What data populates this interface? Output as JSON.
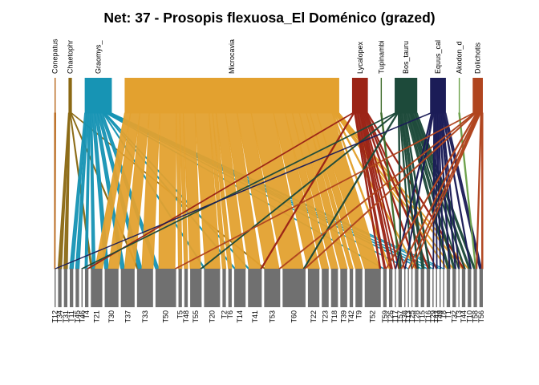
{
  "chart_data": {
    "type": "bipartite",
    "title": "Net: 37 - Prosopis flexuosa_El Doménico (grazed)",
    "higher_level": [
      {
        "label": "Conepatus",
        "color": "#B8691E",
        "weight": 1
      },
      {
        "label": "Chaetophr",
        "color": "#8B6914",
        "weight": 3
      },
      {
        "label": "Graomys_",
        "color": "#1794B4",
        "weight": 24
      },
      {
        "label": "Microcavia",
        "color": "#E3A12F",
        "weight": 190
      },
      {
        "label": "Lycalopex",
        "color": "#9B2416",
        "weight": 14
      },
      {
        "label": "Tupinambi",
        "color": "#3E6B2A",
        "weight": 1
      },
      {
        "label": "Bos_tauru",
        "color": "#1D4A3A",
        "weight": 20
      },
      {
        "label": "Equus_cal",
        "color": "#1B1C57",
        "weight": 14
      },
      {
        "label": "Akodon_d",
        "color": "#6BA04A",
        "weight": 1
      },
      {
        "label": "Dolichotis",
        "color": "#B0451F",
        "weight": 9
      }
    ],
    "lower_level": [
      {
        "label": "T12",
        "weight": 1
      },
      {
        "label": "T34",
        "weight": 3
      },
      {
        "label": "T31",
        "weight": 3
      },
      {
        "label": "T11",
        "weight": 3
      },
      {
        "label": "T45",
        "weight": 3
      },
      {
        "label": "T46",
        "weight": 1
      },
      {
        "label": "T4",
        "weight": 3
      },
      {
        "label": "T21",
        "weight": 10
      },
      {
        "label": "T30",
        "weight": 12
      },
      {
        "label": "T37",
        "weight": 12
      },
      {
        "label": "T33",
        "weight": 14
      },
      {
        "label": "T50",
        "weight": 18
      },
      {
        "label": "T5",
        "weight": 3
      },
      {
        "label": "T48",
        "weight": 3
      },
      {
        "label": "T55",
        "weight": 10
      },
      {
        "label": "T20",
        "weight": 14
      },
      {
        "label": "T2",
        "weight": 3
      },
      {
        "label": "T6",
        "weight": 3
      },
      {
        "label": "T14",
        "weight": 10
      },
      {
        "label": "T41",
        "weight": 12
      },
      {
        "label": "T53",
        "weight": 14
      },
      {
        "label": "T60",
        "weight": 20
      },
      {
        "label": "T22",
        "weight": 10
      },
      {
        "label": "T23",
        "weight": 6
      },
      {
        "label": "T18",
        "weight": 6
      },
      {
        "label": "T39",
        "weight": 6
      },
      {
        "label": "T42",
        "weight": 3
      },
      {
        "label": "T9",
        "weight": 6
      },
      {
        "label": "T52",
        "weight": 14
      },
      {
        "label": "T59",
        "weight": 3
      },
      {
        "label": "T26",
        "weight": 3
      },
      {
        "label": "T17",
        "weight": 1
      },
      {
        "label": "T57",
        "weight": 3
      },
      {
        "label": "T38",
        "weight": 1
      },
      {
        "label": "T13",
        "weight": 1
      },
      {
        "label": "T25",
        "weight": 1
      },
      {
        "label": "T28",
        "weight": 3
      },
      {
        "label": "T15",
        "weight": 3
      },
      {
        "label": "T16",
        "weight": 3
      },
      {
        "label": "T29",
        "weight": 1
      },
      {
        "label": "T43",
        "weight": 1
      },
      {
        "label": "T49",
        "weight": 1
      },
      {
        "label": "T8",
        "weight": 1
      },
      {
        "label": "T1",
        "weight": 3
      },
      {
        "label": "T32",
        "weight": 3
      },
      {
        "label": "T3",
        "weight": 1
      },
      {
        "label": "T44",
        "weight": 3
      },
      {
        "label": "T10",
        "weight": 3
      },
      {
        "label": "T58",
        "weight": 3
      },
      {
        "label": "T56",
        "weight": 3
      }
    ],
    "lower_color": "#707070",
    "links": [
      {
        "from": "Conepatus",
        "to": "T12",
        "weight": 1
      },
      {
        "from": "Chaetophr",
        "to": "T34",
        "weight": 1
      },
      {
        "from": "Chaetophr",
        "to": "T31",
        "weight": 1
      },
      {
        "from": "Chaetophr",
        "to": "T21",
        "weight": 1
      },
      {
        "from": "Chaetophr",
        "to": "T53",
        "weight": 1
      },
      {
        "from": "Chaetophr",
        "to": "T33",
        "weight": 1
      },
      {
        "from": "Graomys_",
        "to": "T11",
        "weight": 2
      },
      {
        "from": "Graomys_",
        "to": "T45",
        "weight": 2
      },
      {
        "from": "Graomys_",
        "to": "T4",
        "weight": 2
      },
      {
        "from": "Graomys_",
        "to": "T21",
        "weight": 2
      },
      {
        "from": "Graomys_",
        "to": "T30",
        "weight": 3
      },
      {
        "from": "Graomys_",
        "to": "T37",
        "weight": 3
      },
      {
        "from": "Graomys_",
        "to": "T33",
        "weight": 3
      },
      {
        "from": "Graomys_",
        "to": "T50",
        "weight": 3
      },
      {
        "from": "Graomys_",
        "to": "T20",
        "weight": 1
      },
      {
        "from": "Graomys_",
        "to": "T14",
        "weight": 1
      },
      {
        "from": "Graomys_",
        "to": "T41",
        "weight": 1
      },
      {
        "from": "Graomys_",
        "to": "T59",
        "weight": 1
      },
      {
        "from": "Graomys_",
        "to": "T13",
        "weight": 1
      },
      {
        "from": "Graomys_",
        "to": "T15",
        "weight": 1
      },
      {
        "from": "Graomys_",
        "to": "T16",
        "weight": 1
      },
      {
        "from": "Graomys_",
        "to": "T29",
        "weight": 1
      },
      {
        "from": "Graomys_",
        "to": "T49",
        "weight": 1
      },
      {
        "from": "Graomys_",
        "to": "T8",
        "weight": 1
      },
      {
        "from": "Microcavia",
        "to": "T21",
        "weight": 5
      },
      {
        "from": "Microcavia",
        "to": "T30",
        "weight": 8
      },
      {
        "from": "Microcavia",
        "to": "T37",
        "weight": 8
      },
      {
        "from": "Microcavia",
        "to": "T33",
        "weight": 9
      },
      {
        "from": "Microcavia",
        "to": "T50",
        "weight": 14
      },
      {
        "from": "Microcavia",
        "to": "T5",
        "weight": 3
      },
      {
        "from": "Microcavia",
        "to": "T48",
        "weight": 3
      },
      {
        "from": "Microcavia",
        "to": "T55",
        "weight": 10
      },
      {
        "from": "Microcavia",
        "to": "T20",
        "weight": 12
      },
      {
        "from": "Microcavia",
        "to": "T2",
        "weight": 3
      },
      {
        "from": "Microcavia",
        "to": "T6",
        "weight": 3
      },
      {
        "from": "Microcavia",
        "to": "T14",
        "weight": 8
      },
      {
        "from": "Microcavia",
        "to": "T41",
        "weight": 10
      },
      {
        "from": "Microcavia",
        "to": "T53",
        "weight": 12
      },
      {
        "from": "Microcavia",
        "to": "T60",
        "weight": 19
      },
      {
        "from": "Microcavia",
        "to": "T22",
        "weight": 10
      },
      {
        "from": "Microcavia",
        "to": "T23",
        "weight": 6
      },
      {
        "from": "Microcavia",
        "to": "T18",
        "weight": 6
      },
      {
        "from": "Microcavia",
        "to": "T39",
        "weight": 6
      },
      {
        "from": "Microcavia",
        "to": "T42",
        "weight": 3
      },
      {
        "from": "Microcavia",
        "to": "T9",
        "weight": 6
      },
      {
        "from": "Microcavia",
        "to": "T52",
        "weight": 13
      },
      {
        "from": "Microcavia",
        "to": "T26",
        "weight": 1
      },
      {
        "from": "Microcavia",
        "to": "T28",
        "weight": 1
      },
      {
        "from": "Microcavia",
        "to": "T1",
        "weight": 1
      },
      {
        "from": "Microcavia",
        "to": "T32",
        "weight": 1
      },
      {
        "from": "Microcavia",
        "to": "T44",
        "weight": 1
      },
      {
        "from": "Microcavia",
        "to": "T10",
        "weight": 1
      },
      {
        "from": "Lycalopex",
        "to": "T4",
        "weight": 1
      },
      {
        "from": "Lycalopex",
        "to": "T41",
        "weight": 1
      },
      {
        "from": "Lycalopex",
        "to": "T52",
        "weight": 1
      },
      {
        "from": "Lycalopex",
        "to": "T59",
        "weight": 2
      },
      {
        "from": "Lycalopex",
        "to": "T26",
        "weight": 2
      },
      {
        "from": "Lycalopex",
        "to": "T17",
        "weight": 1
      },
      {
        "from": "Lycalopex",
        "to": "T57",
        "weight": 1
      },
      {
        "from": "Lycalopex",
        "to": "T38",
        "weight": 1
      },
      {
        "from": "Lycalopex",
        "to": "T28",
        "weight": 1
      },
      {
        "from": "Lycalopex",
        "to": "T16",
        "weight": 1
      },
      {
        "from": "Lycalopex",
        "to": "T43",
        "weight": 1
      },
      {
        "from": "Lycalopex",
        "to": "T44",
        "weight": 1
      },
      {
        "from": "Tupinambi",
        "to": "T57",
        "weight": 1
      },
      {
        "from": "Bos_tauru",
        "to": "T46",
        "weight": 1
      },
      {
        "from": "Bos_tauru",
        "to": "T60",
        "weight": 1
      },
      {
        "from": "Bos_tauru",
        "to": "T57",
        "weight": 1
      },
      {
        "from": "Bos_tauru",
        "to": "T25",
        "weight": 1
      },
      {
        "from": "Bos_tauru",
        "to": "T28",
        "weight": 1
      },
      {
        "from": "Bos_tauru",
        "to": "T15",
        "weight": 2
      },
      {
        "from": "Bos_tauru",
        "to": "T16",
        "weight": 1
      },
      {
        "from": "Bos_tauru",
        "to": "T32",
        "weight": 2
      },
      {
        "from": "Bos_tauru",
        "to": "T3",
        "weight": 1
      },
      {
        "from": "Bos_tauru",
        "to": "T44",
        "weight": 1
      },
      {
        "from": "Bos_tauru",
        "to": "T10",
        "weight": 2
      },
      {
        "from": "Bos_tauru",
        "to": "T58",
        "weight": 2
      },
      {
        "from": "Bos_tauru",
        "to": "T1",
        "weight": 2
      },
      {
        "from": "Bos_tauru",
        "to": "T55",
        "weight": 1
      },
      {
        "from": "Equus_cal",
        "to": "T17",
        "weight": 1
      },
      {
        "from": "Equus_cal",
        "to": "T38",
        "weight": 1
      },
      {
        "from": "Equus_cal",
        "to": "T29",
        "weight": 1
      },
      {
        "from": "Equus_cal",
        "to": "T43",
        "weight": 1
      },
      {
        "from": "Equus_cal",
        "to": "T49",
        "weight": 1
      },
      {
        "from": "Equus_cal",
        "to": "T8",
        "weight": 1
      },
      {
        "from": "Equus_cal",
        "to": "T1",
        "weight": 1
      },
      {
        "from": "Equus_cal",
        "to": "T32",
        "weight": 1
      },
      {
        "from": "Equus_cal",
        "to": "T3",
        "weight": 1
      },
      {
        "from": "Equus_cal",
        "to": "T10",
        "weight": 1
      },
      {
        "from": "Equus_cal",
        "to": "T56",
        "weight": 2
      },
      {
        "from": "Equus_cal",
        "to": "T12",
        "weight": 1
      },
      {
        "from": "Akodon_d",
        "to": "T58",
        "weight": 1
      },
      {
        "from": "Dolichotis",
        "to": "T50",
        "weight": 1
      },
      {
        "from": "Dolichotis",
        "to": "T53",
        "weight": 1
      },
      {
        "from": "Dolichotis",
        "to": "T59",
        "weight": 1
      },
      {
        "from": "Dolichotis",
        "to": "T13",
        "weight": 1
      },
      {
        "from": "Dolichotis",
        "to": "T57",
        "weight": 1
      },
      {
        "from": "Dolichotis",
        "to": "T56",
        "weight": 1
      },
      {
        "from": "Dolichotis",
        "to": "T58",
        "weight": 1
      },
      {
        "from": "Dolichotis",
        "to": "T60",
        "weight": 1
      },
      {
        "from": "Dolichotis",
        "to": "T25",
        "weight": 1
      }
    ]
  }
}
